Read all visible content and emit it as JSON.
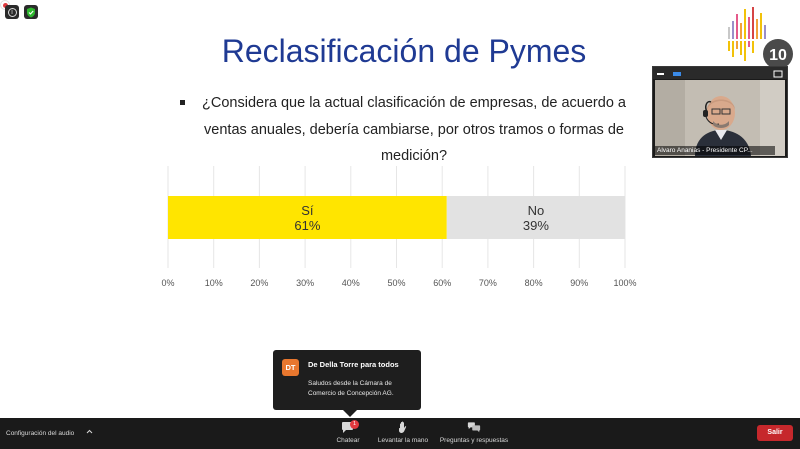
{
  "slide": {
    "title": "Reclasificación de Pymes",
    "question": "¿Considera que la actual clasificación de empresas, de acuerdo a ventas anuales, debería cambiarse, por otros tramos o formas de medición?"
  },
  "chart_data": {
    "type": "bar",
    "orientation": "horizontal-stacked",
    "series": [
      {
        "name": "Sí",
        "value": 61,
        "label": "61%",
        "color": "#ffe500"
      },
      {
        "name": "No",
        "value": 39,
        "label": "39%",
        "color": "#e2e2e2"
      }
    ],
    "xlim": [
      0,
      100
    ],
    "ticks": [
      "0%",
      "10%",
      "20%",
      "30%",
      "40%",
      "50%",
      "60%",
      "70%",
      "80%",
      "90%",
      "100%"
    ],
    "grid": true
  },
  "video": {
    "participant_name": "Alvaro Ananias - Presidente CP..."
  },
  "chat_popup": {
    "avatar_initials": "DT",
    "sender": "De Della Torre para todos",
    "message": "Saludos desde la Cámara de Comercio de Concepción AG."
  },
  "toolbar": {
    "audio_settings_label": "Configuración del audio",
    "chat_label": "Chatear",
    "chat_badge": "1",
    "raise_hand_label": "Levantar la mano",
    "qa_label": "Preguntas y respuestas",
    "leave_label": "Salir"
  },
  "brand": {
    "logo_number": "10"
  },
  "icons": [
    "info-icon",
    "shield-icon",
    "record-icon",
    "chat-icon",
    "raise-hand-icon",
    "qa-icon",
    "chevron-up-icon"
  ],
  "colors": {
    "title_blue": "#1f3a93",
    "yes_yellow": "#ffe500",
    "no_gray": "#e2e2e2",
    "leave_red": "#c6282c",
    "avatar_orange": "#e8772e"
  }
}
